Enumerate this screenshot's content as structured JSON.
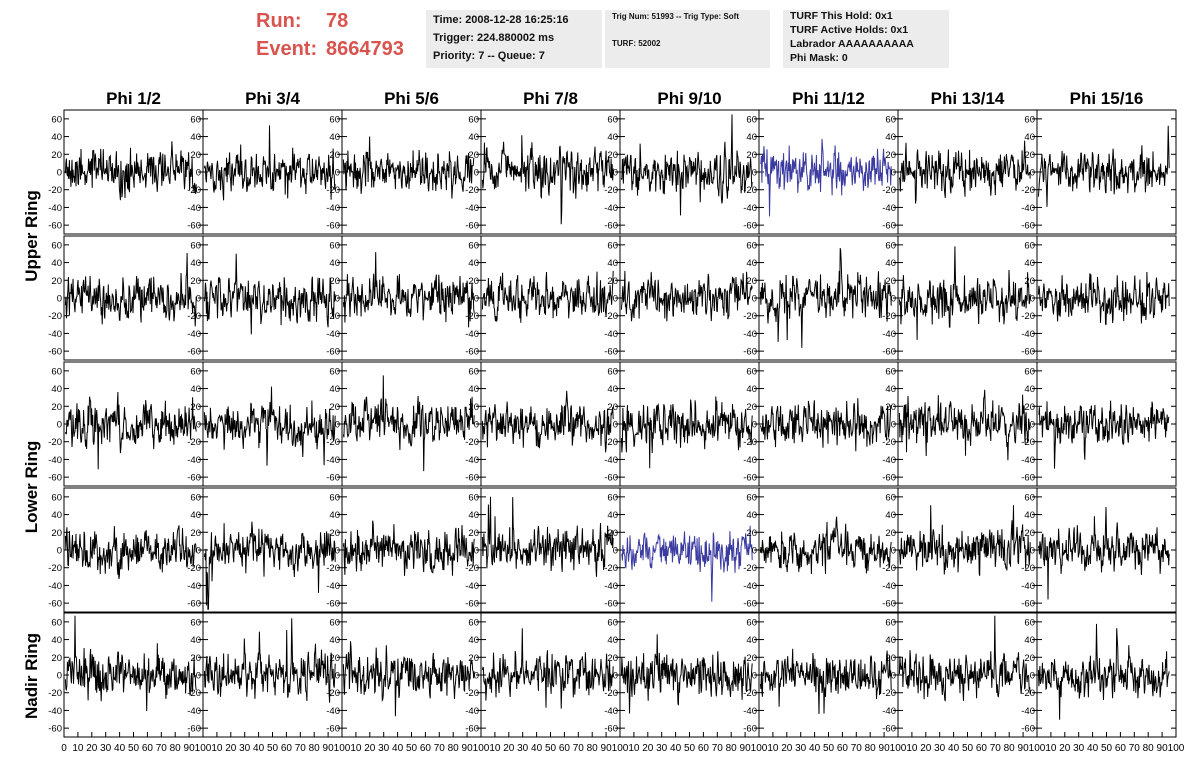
{
  "header": {
    "run_label": "Run:",
    "run_value": "78",
    "event_label": "Event:",
    "event_value": "8664793",
    "header_color": "#d9534f",
    "box1": [
      "Time: 2008-12-28 16:25:16",
      "Trigger: 224.880002 ms",
      "Priority: 7 -- Queue: 7"
    ],
    "box2": [
      "Trig Num: 51993 -- Trig Type: Soft",
      "TURF: 52002"
    ],
    "box3": [
      "TURF This Hold: 0x1",
      "TURF Active Holds: 0x1",
      "Labrador AAAAAAAAAA",
      "Phi Mask: 0"
    ]
  },
  "colors": {
    "trace": "#000000",
    "highlight_trace": "#3a3aa0",
    "box_bg": "#ececec"
  },
  "chart_data": {
    "type": "line",
    "columns": [
      "Phi 1/2",
      "Phi 3/4",
      "Phi 5/6",
      "Phi 7/8",
      "Phi 9/10",
      "Phi 11/12",
      "Phi 13/14",
      "Phi 15/16"
    ],
    "ring_labels": [
      "Upper Ring",
      "Lower Ring",
      "Nadir Ring"
    ],
    "rows": 5,
    "ylim": [
      -70,
      70
    ],
    "yticks": [
      -60,
      -40,
      -20,
      0,
      20,
      40,
      60
    ],
    "xlim": [
      0,
      100
    ],
    "xticks": [
      0,
      10,
      20,
      30,
      40,
      50,
      60,
      70,
      80,
      90,
      100
    ],
    "points_per_trace": 260,
    "trace_amplitude": 11,
    "highlighted_panels": [
      {
        "row": 0,
        "col": 5
      },
      {
        "row": 3,
        "col": 4
      }
    ]
  }
}
